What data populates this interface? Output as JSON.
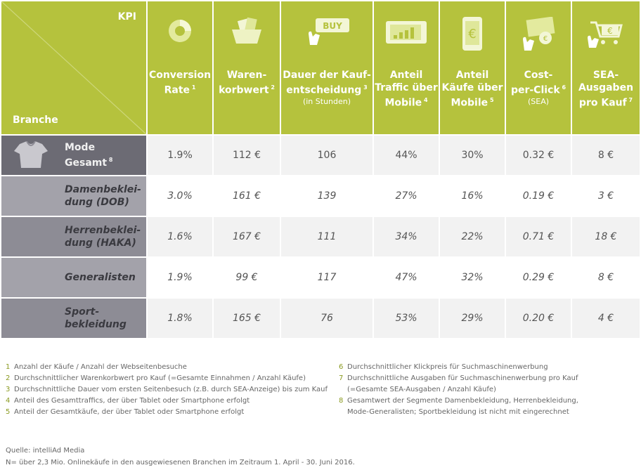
{
  "chart_data": {
    "type": "table",
    "header": {
      "kpi": "KPI",
      "branche": "Branche",
      "columns": [
        {
          "label": [
            "Conversion",
            "Rate"
          ],
          "sup": "1",
          "sub": "",
          "icon": "donut-icon"
        },
        {
          "label": [
            "Waren-",
            "korbwert"
          ],
          "sup": "2",
          "sub": "",
          "icon": "shopping-basket-icon"
        },
        {
          "label": [
            "Dauer der Kauf-",
            "entscheidung"
          ],
          "sup": "3",
          "sub": "(in Stunden)",
          "icon": "buy-button-icon"
        },
        {
          "label": [
            "Anteil",
            "Traffic über",
            "Mobile"
          ],
          "sup": "4",
          "sub": "",
          "icon": "tablet-icon"
        },
        {
          "label": [
            "Anteil",
            "Käufe über",
            "Mobile"
          ],
          "sup": "5",
          "sub": "",
          "icon": "smartphone-euro-icon"
        },
        {
          "label": [
            "Cost-",
            "per-Click"
          ],
          "sup": "6",
          "sub": "(SEA)",
          "icon": "money-click-icon"
        },
        {
          "label": [
            "SEA-",
            "Ausgaben",
            "pro Kauf"
          ],
          "sup": "7",
          "sub": "",
          "icon": "cart-click-icon"
        }
      ]
    },
    "rows": [
      {
        "label": [
          "Mode",
          "Gesamt"
        ],
        "sup": "8",
        "values": [
          "1.9%",
          "112 €",
          "106",
          "44%",
          "30%",
          "0.32 €",
          "8 €"
        ]
      },
      {
        "label": [
          "Damenbeklei-",
          "dung (DOB)"
        ],
        "sup": "",
        "values": [
          "3.0%",
          "161 €",
          "139",
          "27%",
          "16%",
          "0.19 €",
          "3 €"
        ]
      },
      {
        "label": [
          "Herrenbeklei-",
          "dung (HAKA)"
        ],
        "sup": "",
        "values": [
          "1.6%",
          "167 €",
          "111",
          "34%",
          "22%",
          "0.71 €",
          "18 €"
        ]
      },
      {
        "label": [
          "Generalisten"
        ],
        "sup": "",
        "values": [
          "1.9%",
          "99 €",
          "117",
          "47%",
          "32%",
          "0.29 €",
          "8 €"
        ]
      },
      {
        "label": [
          "Sport-",
          "bekleidung"
        ],
        "sup": "",
        "values": [
          "1.8%",
          "165 €",
          "76",
          "53%",
          "29%",
          "0.20 €",
          "4 €"
        ]
      }
    ]
  },
  "footnotes_left": [
    {
      "num": "1",
      "text": "Anzahl der Käufe / Anzahl der Webseitenbesuche"
    },
    {
      "num": "2",
      "text": "Durchschnittlicher Warenkorbwert pro Kauf (=Gesamte Einnahmen / Anzahl Käufe)"
    },
    {
      "num": "3",
      "text": "Durchschnittliche Dauer vom ersten Seitenbesuch (z.B. durch SEA-Anzeige) bis zum Kauf"
    },
    {
      "num": "4",
      "text": "Anteil des Gesamttraffics, der über Tablet oder Smartphone erfolgt"
    },
    {
      "num": "5",
      "text": "Anteil der Gesamtkäufe, der über Tablet oder Smartphone erfolgt"
    }
  ],
  "footnotes_right": [
    {
      "num": "6",
      "text": "Durchschnittlicher Klickpreis für Suchmaschinenwerbung"
    },
    {
      "num": "7",
      "text": "Durchschnittliche Ausgaben für Suchmaschinenwerbung pro Kauf"
    },
    {
      "num": "",
      "text": "(=Gesamte SEA-Ausgaben / Anzahl Käufe)"
    },
    {
      "num": "8",
      "text": "Gesamtwert der Segmente Damenbekleidung, Herrenbekleidung,"
    },
    {
      "num": "",
      "text": "Mode-Generalisten; Sportbekleidung ist nicht mit eingerechnet"
    }
  ],
  "source": "Quelle: intelliAd Media",
  "note": "N= über 2,3 Mio. Onlinekäufe in den ausgewiesenen Branchen im Zeitraum 1. April - 30. Juni 2016.",
  "colors": {
    "header": "#b5c23d",
    "row_dark": "#8d8c95",
    "row_light": "#a3a2aa",
    "cell_odd": "#f2f2f2",
    "cell_even": "#ffffff",
    "footnote_number": "#8a9a20"
  }
}
